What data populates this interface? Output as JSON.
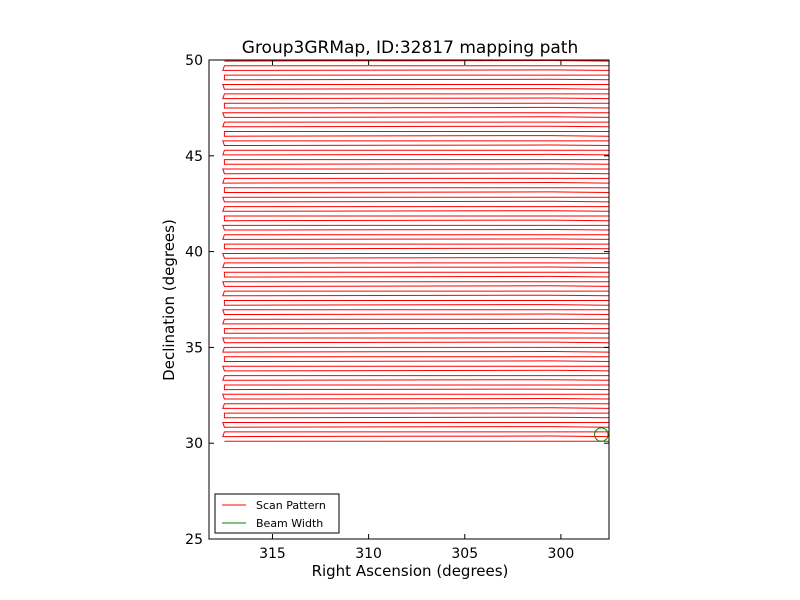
{
  "chart_data": {
    "type": "line",
    "title": "Group3GRMap, ID:32817 mapping path",
    "xlabel": "Right Ascension (degrees)",
    "ylabel": "Declination (degrees)",
    "xlim": [
      318.3,
      297.5
    ],
    "ylim": [
      25,
      50
    ],
    "x_ticks": [
      315,
      310,
      305,
      300
    ],
    "x_tick_labels": [
      "315",
      "310",
      "305",
      "300"
    ],
    "y_ticks": [
      25,
      30,
      35,
      40,
      45,
      50
    ],
    "y_tick_labels": [
      "25",
      "30",
      "35",
      "40",
      "45",
      "50"
    ],
    "grid": false,
    "legend_position": "lower-left",
    "series": [
      {
        "name": "Scan Pattern",
        "color": "#ff0000",
        "pattern": "raster",
        "ra_start": 317.5,
        "ra_end": 297.5,
        "dec_start": 30.1,
        "dec_end": 50.0,
        "row_spacing": 0.245
      },
      {
        "name": "Beam Width",
        "color": "#008000",
        "circle_center": [
          297.9,
          30.45
        ],
        "circle_radius_dec": 0.35
      }
    ],
    "legend": [
      {
        "label": "Scan Pattern",
        "color": "#ff0000"
      },
      {
        "label": "Beam Width",
        "color": "#008000"
      }
    ]
  }
}
